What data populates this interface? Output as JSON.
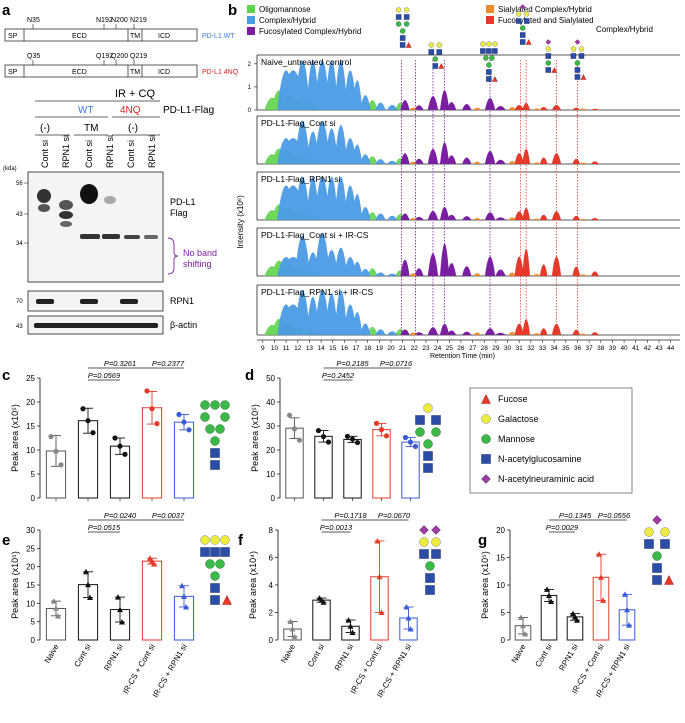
{
  "panel_labels": {
    "a": "a",
    "b": "b",
    "c": "c",
    "d": "d",
    "e": "e",
    "f": "f",
    "g": "g"
  },
  "panel_a": {
    "wt_sites": [
      "N35",
      "N192",
      "N200",
      "N219"
    ],
    "mut_sites": [
      "Q35",
      "Q192",
      "Q200",
      "Q219"
    ],
    "domains": [
      "SP",
      "ECD",
      "TM",
      "ICD"
    ],
    "wt_label": "PD-L1 WT",
    "mut_label": "PD-L1 4NQ",
    "treatment": "IR + CQ",
    "group_wt": "WT",
    "group_4nq": "4NQ",
    "construct": "PD-L1-Flag",
    "cond_minus": "(-)",
    "cond_tm": "TM",
    "lanes": [
      "Cont si",
      "RPN1 si",
      "Cont si",
      "RPN1 si",
      "Cont si",
      "RPN1 si"
    ],
    "kda_unit": "(kda)",
    "markers": [
      "56",
      "43",
      "34"
    ],
    "marker_rpn1": "70",
    "marker_actin": "43",
    "band_pdl1": "PD-L1",
    "band_flag": "Flag",
    "note_line1": "No band",
    "note_line2": "shifting",
    "band_rpn1": "RPN1",
    "band_actin": "β-actin"
  },
  "panel_b": {
    "legend": [
      {
        "label": "Oligomannose",
        "color": "#5ed44a"
      },
      {
        "label": "Complex/Hybrid",
        "color": "#4a9be6"
      },
      {
        "label": "Fucosylated Complex/Hybrid",
        "color": "#7b1fa2"
      },
      {
        "label": "Sialylated Complex/Hybrid",
        "color": "#ef8b2c"
      },
      {
        "label": "Fucosylated and Sialylated",
        "color": "#e53a2a"
      }
    ],
    "legend_extra": "Complex/Hybrid",
    "tracks": [
      "Naive_untreated control",
      "PD-L1-Flag_Cont si",
      "PD-L1-Flag_RPN1 si",
      "PD-L1-Flag_Cont si + IR-CS",
      "PD-L1-Flag_RPN1 si + IR-CS"
    ],
    "y_axis": "Intensity (x10⁶)",
    "y_ticks": [
      "0",
      "1",
      "2"
    ],
    "x_ticks": [
      "9",
      "10",
      "11",
      "12",
      "13",
      "14",
      "15",
      "16",
      "17",
      "18",
      "19",
      "20",
      "21",
      "22",
      "23",
      "24",
      "25",
      "26",
      "27",
      "28",
      "29",
      "30",
      "31",
      "32",
      "33",
      "34",
      "35",
      "36",
      "37",
      "38",
      "39",
      "40",
      "41",
      "42",
      "43",
      "44"
    ],
    "x_label": "Retention Time (min)"
  },
  "glycan_legend": [
    {
      "label": "Fucose",
      "color": "#e53a2a",
      "shape": "triangle"
    },
    {
      "label": "Galactose",
      "color": "#ecec3c",
      "shape": "circle"
    },
    {
      "label": "Mannose",
      "color": "#3cb84a",
      "shape": "circle"
    },
    {
      "label": "N-acetylglucosamine",
      "color": "#2b4da6",
      "shape": "square"
    },
    {
      "label": "N-acetylneuraminic acid",
      "color": "#9b3fa0",
      "shape": "diamond"
    }
  ],
  "chart_data": [
    {
      "id": "c",
      "type": "bar",
      "categories": [
        "Naive",
        "Cont si",
        "RPN1 si",
        "IR-CS + Cont si",
        "IR-CS + RPN1 si"
      ],
      "values": [
        9.8,
        16.1,
        10.8,
        18.8,
        15.8
      ],
      "errors": [
        3.2,
        2.6,
        1.7,
        3.4,
        1.6
      ],
      "points": [
        [
          12.8,
          9.7,
          6.9
        ],
        [
          18.6,
          16.1,
          13.6
        ],
        [
          12.5,
          10.8,
          9.1
        ],
        [
          22.3,
          18.6,
          15.5
        ],
        [
          17.4,
          15.8,
          14.2
        ]
      ],
      "ylim": [
        0,
        25
      ],
      "yticks": [
        0,
        5,
        10,
        15,
        20,
        25
      ],
      "ylabel": "Peak area (x10⁵)",
      "comparisons": [
        {
          "from": 1,
          "to": 2,
          "text": "P=0.0569"
        },
        {
          "from": 1,
          "to": 3,
          "text": "P=0.3261"
        },
        {
          "from": 3,
          "to": 4,
          "text": "P=0.2377"
        }
      ]
    },
    {
      "id": "d",
      "type": "bar",
      "categories": [
        "Naive",
        "Cont si",
        "RPN1 si",
        "IR-CS + Cont si",
        "IR-CS + RPN1 si"
      ],
      "values": [
        29.1,
        25.7,
        24.4,
        28.5,
        23.3
      ],
      "errors": [
        4.3,
        2.4,
        1.3,
        2.6,
        1.9
      ],
      "points": [
        [
          34.5,
          28.8,
          24.1
        ],
        [
          28.1,
          25.6,
          23.3
        ],
        [
          25.7,
          24.5,
          23.1
        ],
        [
          31.1,
          28.5,
          25.9
        ],
        [
          25.2,
          23.3,
          21.5
        ]
      ],
      "ylim": [
        0,
        50
      ],
      "yticks": [
        0,
        10,
        20,
        30,
        40,
        50
      ],
      "ylabel": "Peak area (x10⁵)",
      "comparisons": [
        {
          "from": 1,
          "to": 2,
          "text": "P=0.2452"
        },
        {
          "from": 1,
          "to": 3,
          "text": "P=0.2185"
        },
        {
          "from": 3,
          "to": 4,
          "text": "P=0.0716"
        }
      ]
    },
    {
      "id": "e",
      "type": "bar",
      "categories": [
        "Naive",
        "Cont si",
        "RPN1 si",
        "IR-CS + Cont si",
        "IR-CS + RPN1 si"
      ],
      "values": [
        8.6,
        15.1,
        8.3,
        21.5,
        11.9
      ],
      "errors": [
        2.0,
        3.5,
        3.4,
        0.8,
        2.9
      ],
      "points": [
        [
          10.6,
          8.7,
          6.5
        ],
        [
          18.6,
          15.1,
          11.6
        ],
        [
          11.7,
          8.3,
          4.9
        ],
        [
          22.3,
          21.5,
          20.7
        ],
        [
          14.8,
          11.9,
          9.0
        ]
      ],
      "ylim": [
        0,
        30
      ],
      "yticks": [
        0,
        5,
        10,
        15,
        20,
        25,
        30
      ],
      "ylabel": "Peak area (x10⁵)",
      "comparisons": [
        {
          "from": 1,
          "to": 2,
          "text": "P=0.0515"
        },
        {
          "from": 1,
          "to": 3,
          "text": "P=0.0240"
        },
        {
          "from": 3,
          "to": 4,
          "text": "P=0.0037"
        }
      ]
    },
    {
      "id": "f",
      "type": "bar",
      "categories": [
        "Naive",
        "Cont si",
        "RPN1 si",
        "IR-CS + Cont si",
        "IR-CS + RPN1 si"
      ],
      "values": [
        0.8,
        2.9,
        1.0,
        4.6,
        1.6
      ],
      "errors": [
        0.55,
        0.15,
        0.45,
        2.6,
        0.8
      ],
      "points": [
        [
          1.35,
          0.8,
          0.25
        ],
        [
          3.05,
          2.9,
          2.75
        ],
        [
          1.45,
          1.0,
          0.55
        ],
        [
          7.2,
          4.6,
          2.0
        ],
        [
          2.4,
          1.6,
          0.8
        ]
      ],
      "ylim": [
        0,
        8
      ],
      "yticks": [
        0,
        2,
        4,
        6,
        8
      ],
      "ylabel": "Peak area (x10⁴)",
      "comparisons": [
        {
          "from": 1,
          "to": 2,
          "text": "P=0.0013"
        },
        {
          "from": 1,
          "to": 3,
          "text": "P=0.1718"
        },
        {
          "from": 3,
          "to": 4,
          "text": "P=0.0670"
        }
      ]
    },
    {
      "id": "g",
      "type": "bar",
      "categories": [
        "Naive",
        "Cont si",
        "RPN1 si",
        "IR-CS + Cont si",
        "IR-CS + RPN1 si"
      ],
      "values": [
        2.6,
        8.1,
        4.2,
        11.4,
        5.5
      ],
      "errors": [
        1.5,
        1.1,
        0.6,
        4.2,
        2.8
      ],
      "points": [
        [
          4.1,
          2.6,
          1.1
        ],
        [
          9.2,
          8.1,
          7.0
        ],
        [
          4.8,
          4.2,
          3.6
        ],
        [
          15.6,
          11.4,
          7.2
        ],
        [
          8.3,
          5.5,
          2.7
        ]
      ],
      "ylim": [
        0,
        20
      ],
      "yticks": [
        0,
        5,
        10,
        15,
        20
      ],
      "ylabel": "Peak area (x10⁵)",
      "comparisons": [
        {
          "from": 1,
          "to": 2,
          "text": "P=0.0029"
        },
        {
          "from": 1,
          "to": 3,
          "text": "P=0.1345"
        },
        {
          "from": 3,
          "to": 4,
          "text": "P=0.0556"
        }
      ]
    }
  ]
}
